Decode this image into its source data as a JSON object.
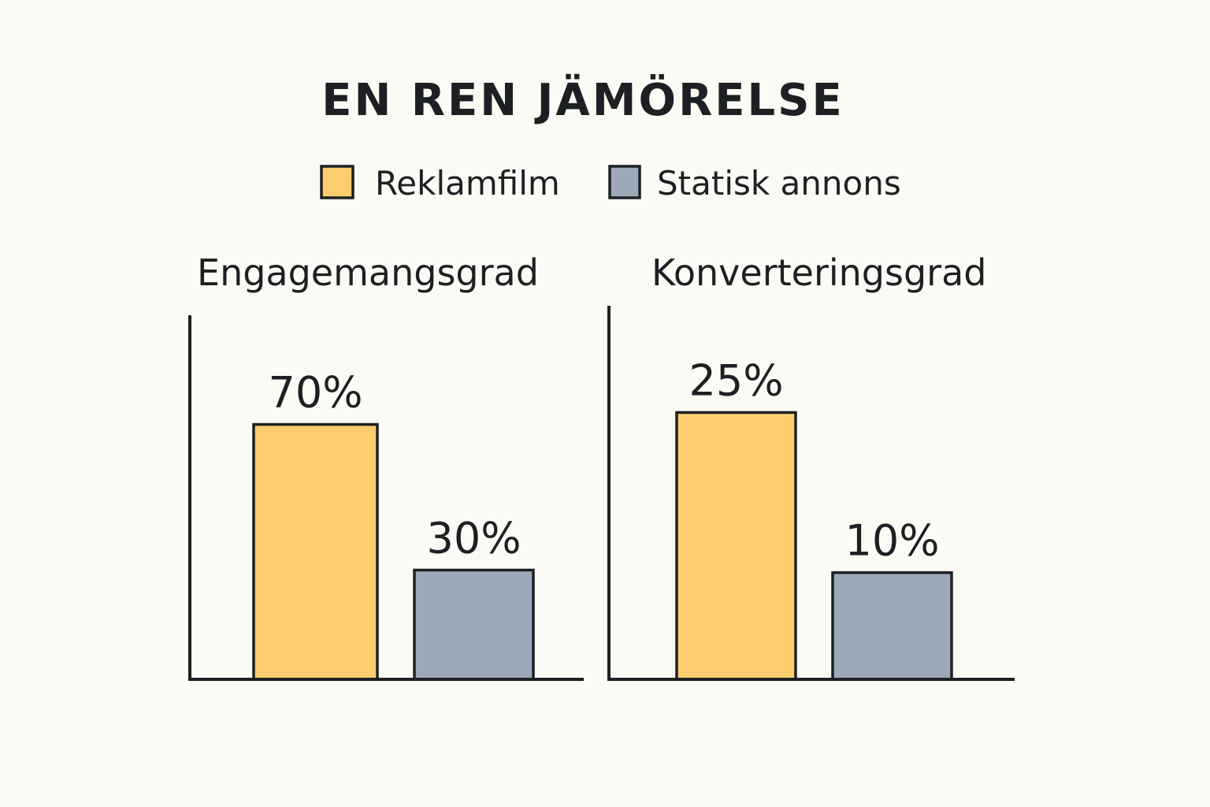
{
  "chart_data": {
    "type": "bar",
    "title": "EN REN JÄMÖRELSE",
    "legend": {
      "placement": "top-center",
      "entries": [
        {
          "name": "Reklamfilm",
          "color": "#fbcd6e"
        },
        {
          "name": "Statisk annons",
          "color": "#9ba9b8"
        }
      ]
    },
    "panels": [
      {
        "title": "Engagemangsgrad",
        "series": [
          {
            "name": "Reklamfilm",
            "value": 70,
            "label": "70%",
            "color": "#fbcd6e"
          },
          {
            "name": "Statisk annons",
            "value": 30,
            "label": "30%",
            "color": "#9ba9b8"
          }
        ],
        "ylim": [
          0,
          100
        ]
      },
      {
        "title": "Konverteringsgrad",
        "series": [
          {
            "name": "Reklamfilm",
            "value": 25,
            "label": "25%",
            "color": "#fbcd6e"
          },
          {
            "name": "Statisk annons",
            "value": 10,
            "label": "10%",
            "color": "#9ba9b8"
          }
        ],
        "ylim": [
          0,
          35
        ]
      }
    ],
    "grid": false
  }
}
